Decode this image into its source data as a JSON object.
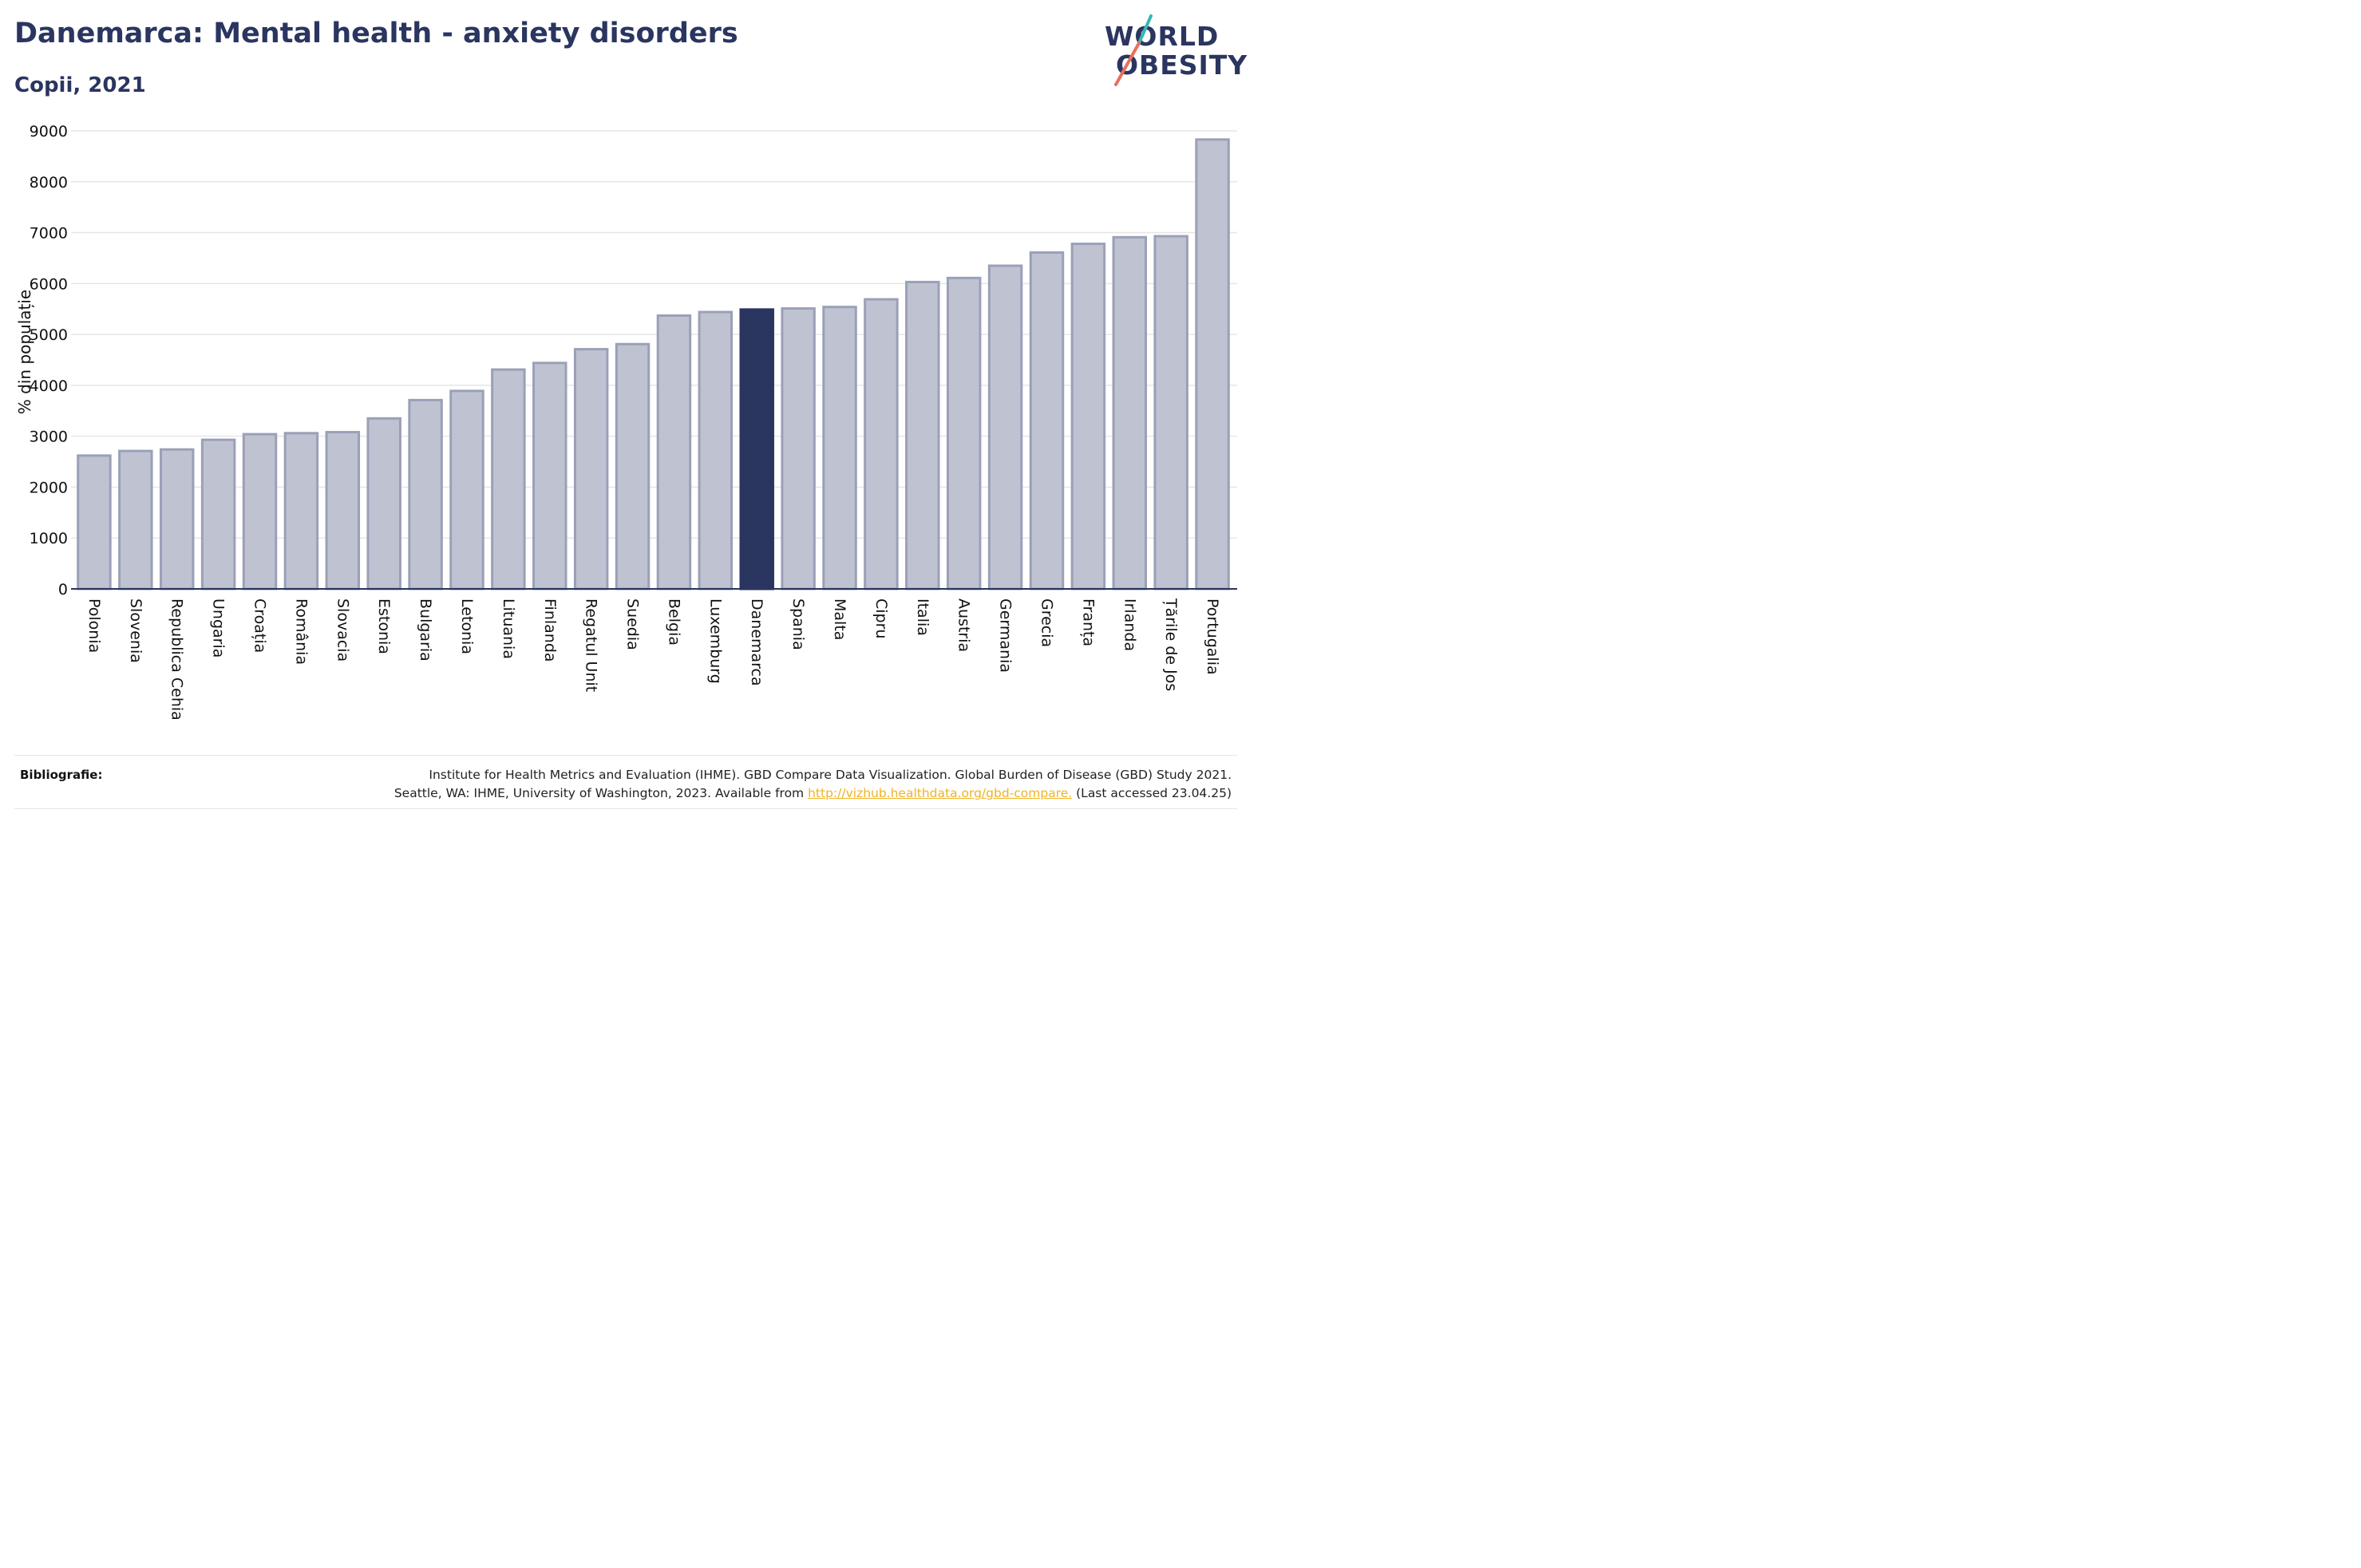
{
  "title": "Danemarca: Mental health - anxiety disorders",
  "subtitle": "Copii, 2021",
  "logo": {
    "line1": "WORLD",
    "line2": "OBESITY"
  },
  "colors": {
    "highlight": "#2a3560",
    "bar_fill": "#bfc3d1",
    "bar_stroke": "#9aa0b7",
    "logo_slash_top": "#35b8b0",
    "logo_slash_bottom": "#e8705e"
  },
  "chart_data": {
    "type": "bar",
    "title": "",
    "xlabel": "",
    "ylabel": "% din populație",
    "ylim": [
      0,
      9000
    ],
    "yticks": [
      0,
      1000,
      2000,
      3000,
      4000,
      5000,
      6000,
      7000,
      8000,
      9000
    ],
    "grid": true,
    "highlight_category": "Danemarca",
    "categories": [
      "Polonia",
      "Slovenia",
      "Republica Cehia",
      "Ungaria",
      "Croația",
      "România",
      "Slovacia",
      "Estonia",
      "Bulgaria",
      "Letonia",
      "Lituania",
      "Finlanda",
      "Regatul Unit",
      "Suedia",
      "Belgia",
      "Luxemburg",
      "Danemarca",
      "Spania",
      "Malta",
      "Cipru",
      "Italia",
      "Austria",
      "Germania",
      "Grecia",
      "Franța",
      "Irlanda",
      "Țările de Jos",
      "Portugalia"
    ],
    "values": [
      2620,
      2710,
      2740,
      2930,
      3040,
      3060,
      3080,
      3350,
      3710,
      3890,
      4310,
      4440,
      4710,
      4810,
      5370,
      5440,
      5490,
      5510,
      5540,
      5690,
      6030,
      6110,
      6350,
      6610,
      6780,
      6910,
      6930,
      8830
    ]
  },
  "footer": {
    "label": "Bibliografie:",
    "line1": "Institute for Health Metrics and Evaluation (IHME). GBD Compare Data Visualization. Global Burden of Disease (GBD) Study 2021.",
    "line2_prefix": "Seattle, WA: IHME, University of Washington, 2023. Available from ",
    "link": "http://vizhub.healthdata.org/gbd-compare.",
    "line2_suffix": " (Last accessed 23.04.25)"
  }
}
